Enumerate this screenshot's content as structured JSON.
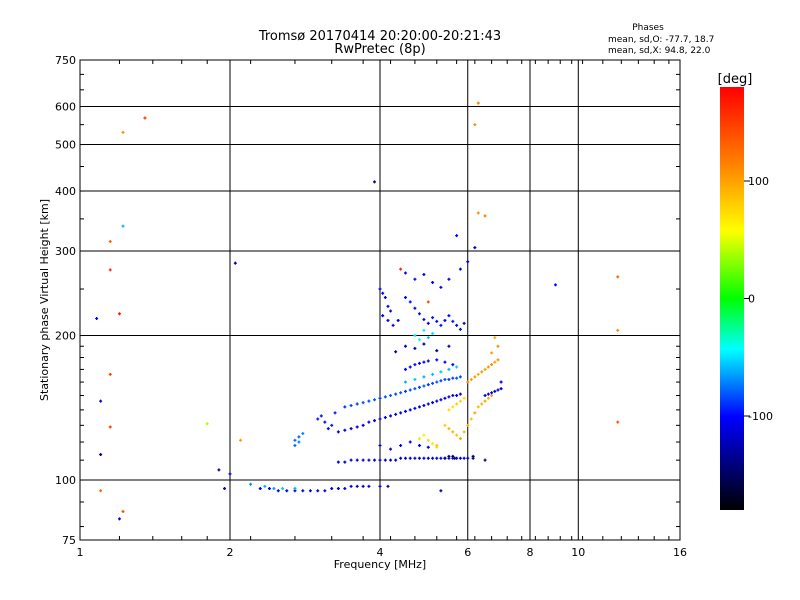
{
  "header": {
    "title_line1": "Tromsø 20170414 20:20:00-20:21:43",
    "title_line2": "RwPretec (8p)",
    "phases_label": "Phases",
    "phase_o": "mean, sd,O: -77.7, 18.7",
    "phase_x": "mean, sd,X:  94.8, 22.0"
  },
  "colorbar": {
    "label": "[deg]",
    "ticks": [
      "100",
      "0",
      "-100"
    ],
    "tick_values": [
      100,
      0,
      -100
    ],
    "range": [
      -180,
      180
    ],
    "colors": [
      "#ff0000",
      "#ff8000",
      "#ffff00",
      "#00ff00",
      "#00ffff",
      "#0000ff",
      "#000000"
    ]
  },
  "chart_data": {
    "type": "scatter",
    "title": "Tromsø 20170414 20:20:00-20:21:43",
    "subtitle": "RwPretec (8p)",
    "xlabel": "Frequency [MHz]",
    "ylabel": "Stationary phase Virtual Height [km]",
    "x_scale": "log",
    "y_scale": "log",
    "xlim": [
      1,
      16
    ],
    "ylim": [
      75,
      750
    ],
    "x_ticks": [
      1,
      2,
      4,
      6,
      8,
      10,
      16
    ],
    "x_tick_labels": [
      "1",
      "2",
      "4",
      "6",
      "8",
      "10",
      "16"
    ],
    "y_ticks": [
      75,
      100,
      200,
      300,
      400,
      500,
      600,
      750
    ],
    "y_tick_labels": [
      "75",
      "100",
      "200",
      "300",
      "400",
      "500",
      "600",
      "750"
    ],
    "grid": true,
    "color_by": "phase (deg)",
    "points": [
      [
        2.3,
        96,
        -110
      ],
      [
        2.4,
        96,
        -105
      ],
      [
        2.5,
        95,
        -115
      ],
      [
        2.6,
        95,
        -110
      ],
      [
        2.7,
        95,
        -112
      ],
      [
        2.8,
        95,
        -108
      ],
      [
        2.9,
        95,
        -115
      ],
      [
        3.0,
        95,
        -112
      ],
      [
        3.1,
        95,
        -110
      ],
      [
        3.2,
        96,
        -115
      ],
      [
        3.3,
        96,
        -112
      ],
      [
        3.4,
        96,
        -110
      ],
      [
        3.5,
        97,
        -115
      ],
      [
        3.6,
        97,
        -112
      ],
      [
        3.7,
        97,
        -118
      ],
      [
        3.8,
        97,
        -110
      ],
      [
        4.0,
        97,
        -115
      ],
      [
        4.15,
        97,
        -120
      ],
      [
        2.2,
        98,
        -70
      ],
      [
        2.35,
        97,
        -60
      ],
      [
        2.45,
        96,
        -65
      ],
      [
        2.55,
        96,
        -55
      ],
      [
        2.7,
        96,
        -60
      ],
      [
        3.3,
        109,
        -110
      ],
      [
        3.4,
        109,
        -115
      ],
      [
        3.5,
        110,
        -112
      ],
      [
        3.6,
        110,
        -118
      ],
      [
        3.7,
        110,
        -110
      ],
      [
        3.8,
        110,
        -115
      ],
      [
        3.9,
        110,
        -112
      ],
      [
        4.0,
        110,
        -120
      ],
      [
        4.1,
        110,
        -110
      ],
      [
        4.2,
        110,
        -115
      ],
      [
        4.3,
        110,
        -112
      ],
      [
        4.4,
        111,
        -115
      ],
      [
        4.5,
        111,
        -112
      ],
      [
        4.6,
        111,
        -118
      ],
      [
        4.7,
        111,
        -110
      ],
      [
        4.8,
        111,
        -115
      ],
      [
        4.9,
        111,
        -112
      ],
      [
        5.0,
        111,
        -120
      ],
      [
        5.1,
        111,
        -110
      ],
      [
        5.2,
        111,
        -115
      ],
      [
        5.3,
        111,
        -112
      ],
      [
        5.4,
        111,
        -115
      ],
      [
        5.5,
        111,
        -110
      ],
      [
        5.6,
        111,
        -118
      ],
      [
        5.7,
        111,
        -112
      ],
      [
        5.8,
        111,
        -115
      ],
      [
        5.9,
        111,
        -110
      ],
      [
        6.0,
        111,
        -120
      ],
      [
        5.4,
        111,
        -140
      ],
      [
        5.5,
        112,
        -135
      ],
      [
        5.65,
        111,
        -142
      ],
      [
        6.15,
        112,
        -138
      ],
      [
        6.5,
        110,
        -135
      ],
      [
        3.3,
        126,
        -110
      ],
      [
        3.4,
        127,
        -105
      ],
      [
        3.5,
        128,
        -112
      ],
      [
        3.6,
        129,
        -108
      ],
      [
        3.7,
        130,
        -110
      ],
      [
        3.8,
        132,
        -115
      ],
      [
        3.9,
        133,
        -108
      ],
      [
        4.0,
        134,
        -112
      ],
      [
        4.1,
        135,
        -110
      ],
      [
        4.2,
        136,
        -105
      ],
      [
        4.3,
        137,
        -112
      ],
      [
        4.4,
        138,
        -110
      ],
      [
        4.5,
        139,
        -108
      ],
      [
        4.6,
        140,
        -112
      ],
      [
        4.7,
        141,
        -110
      ],
      [
        4.8,
        142,
        -105
      ],
      [
        4.9,
        143,
        -112
      ],
      [
        5.0,
        144,
        -110
      ],
      [
        5.1,
        145,
        -108
      ],
      [
        5.2,
        146,
        -112
      ],
      [
        5.3,
        147,
        -110
      ],
      [
        5.4,
        148,
        -105
      ],
      [
        5.5,
        149,
        -112
      ],
      [
        5.6,
        150,
        -110
      ],
      [
        5.7,
        150,
        -108
      ],
      [
        5.8,
        151,
        -112
      ],
      [
        3.4,
        142,
        -90
      ],
      [
        3.5,
        143,
        -85
      ],
      [
        3.6,
        144,
        -88
      ],
      [
        3.7,
        145,
        -80
      ],
      [
        3.8,
        146,
        -86
      ],
      [
        3.9,
        147,
        -82
      ],
      [
        4.0,
        148,
        -88
      ],
      [
        4.1,
        149,
        -84
      ],
      [
        4.2,
        150,
        -80
      ],
      [
        4.3,
        151,
        -86
      ],
      [
        4.4,
        152,
        -82
      ],
      [
        4.5,
        153,
        -88
      ],
      [
        4.6,
        154,
        -84
      ],
      [
        4.7,
        155,
        -80
      ],
      [
        4.8,
        156,
        -86
      ],
      [
        4.9,
        157,
        -82
      ],
      [
        5.0,
        158,
        -88
      ],
      [
        5.1,
        159,
        -84
      ],
      [
        5.2,
        160,
        -80
      ],
      [
        5.3,
        161,
        -86
      ],
      [
        5.4,
        162,
        -82
      ],
      [
        5.5,
        162,
        -88
      ],
      [
        5.6,
        163,
        -84
      ],
      [
        5.7,
        163,
        -80
      ],
      [
        5.8,
        164,
        -86
      ],
      [
        2.7,
        121,
        -75
      ],
      [
        2.75,
        123,
        -80
      ],
      [
        2.8,
        125,
        -70
      ],
      [
        2.7,
        118,
        -78
      ],
      [
        2.75,
        120,
        -72
      ],
      [
        3.0,
        134,
        -95
      ],
      [
        3.1,
        132,
        -100
      ],
      [
        3.2,
        130,
        -92
      ],
      [
        3.15,
        128,
        -98
      ],
      [
        3.05,
        136,
        -94
      ],
      [
        3.25,
        138,
        -96
      ],
      [
        4.0,
        118,
        -110
      ],
      [
        4.2,
        116,
        -115
      ],
      [
        4.4,
        118,
        -105
      ],
      [
        4.6,
        120,
        -110
      ],
      [
        4.8,
        118,
        -112
      ],
      [
        5.0,
        117,
        -108
      ],
      [
        4.5,
        170,
        -100
      ],
      [
        4.6,
        172,
        -105
      ],
      [
        4.7,
        174,
        -98
      ],
      [
        4.8,
        175,
        -102
      ],
      [
        4.9,
        176,
        -100
      ],
      [
        5.0,
        177,
        -104
      ],
      [
        5.2,
        178,
        -98
      ],
      [
        5.4,
        176,
        -102
      ],
      [
        5.6,
        174,
        -100
      ],
      [
        4.5,
        160,
        -60
      ],
      [
        4.7,
        162,
        -55
      ],
      [
        4.9,
        164,
        -62
      ],
      [
        5.1,
        166,
        -58
      ],
      [
        5.3,
        168,
        -56
      ],
      [
        5.5,
        170,
        -60
      ],
      [
        5.7,
        172,
        -55
      ],
      [
        4.0,
        250,
        -110
      ],
      [
        4.05,
        245,
        -105
      ],
      [
        4.1,
        240,
        -112
      ],
      [
        4.15,
        230,
        -108
      ],
      [
        4.2,
        225,
        -110
      ],
      [
        4.05,
        220,
        -115
      ],
      [
        4.15,
        215,
        -112
      ],
      [
        4.25,
        210,
        -108
      ],
      [
        4.35,
        215,
        -110
      ],
      [
        4.5,
        240,
        -100
      ],
      [
        4.6,
        235,
        -95
      ],
      [
        4.7,
        228,
        -102
      ],
      [
        4.8,
        222,
        -98
      ],
      [
        4.9,
        216,
        -100
      ],
      [
        5.0,
        212,
        -105
      ],
      [
        5.1,
        218,
        -95
      ],
      [
        5.2,
        214,
        -100
      ],
      [
        5.3,
        210,
        -98
      ],
      [
        5.4,
        215,
        -102
      ],
      [
        5.5,
        220,
        -100
      ],
      [
        5.6,
        214,
        -96
      ],
      [
        5.7,
        210,
        -100
      ],
      [
        5.8,
        206,
        -98
      ],
      [
        5.9,
        212,
        -102
      ],
      [
        4.5,
        270,
        -105
      ],
      [
        4.7,
        262,
        -100
      ],
      [
        4.9,
        268,
        -110
      ],
      [
        5.1,
        258,
        -100
      ],
      [
        5.3,
        252,
        -105
      ],
      [
        5.5,
        262,
        -110
      ],
      [
        4.3,
        185,
        -120
      ],
      [
        4.5,
        190,
        -130
      ],
      [
        4.7,
        188,
        -125
      ],
      [
        4.9,
        192,
        -135
      ],
      [
        5.2,
        186,
        -128
      ],
      [
        5.5,
        190,
        -130
      ],
      [
        4.7,
        200,
        -50
      ],
      [
        4.8,
        196,
        -40
      ],
      [
        4.9,
        205,
        -45
      ],
      [
        5.0,
        198,
        -55
      ],
      [
        5.1,
        202,
        -48
      ],
      [
        5.4,
        130,
        80
      ],
      [
        5.5,
        128,
        90
      ],
      [
        5.6,
        126,
        95
      ],
      [
        5.7,
        124,
        85
      ],
      [
        5.8,
        122,
        100
      ],
      [
        5.9,
        126,
        90
      ],
      [
        6.0,
        130,
        95
      ],
      [
        6.1,
        134,
        85
      ],
      [
        6.2,
        138,
        100
      ],
      [
        6.3,
        142,
        90
      ],
      [
        6.4,
        144,
        95
      ],
      [
        6.5,
        146,
        100
      ],
      [
        6.6,
        148,
        92
      ],
      [
        6.7,
        150,
        98
      ],
      [
        6.0,
        160,
        110
      ],
      [
        6.1,
        162,
        100
      ],
      [
        6.2,
        164,
        105
      ],
      [
        6.3,
        166,
        95
      ],
      [
        6.4,
        168,
        108
      ],
      [
        6.5,
        170,
        100
      ],
      [
        6.6,
        172,
        104
      ],
      [
        6.7,
        174,
        110
      ],
      [
        6.8,
        176,
        100
      ],
      [
        6.9,
        178,
        105
      ],
      [
        5.5,
        140,
        75
      ],
      [
        5.6,
        142,
        70
      ],
      [
        5.7,
        144,
        80
      ],
      [
        5.8,
        146,
        78
      ],
      [
        5.9,
        148,
        72
      ],
      [
        6.5,
        150,
        -110
      ],
      [
        6.6,
        151,
        -115
      ],
      [
        6.7,
        152,
        -112
      ],
      [
        6.8,
        153,
        -118
      ],
      [
        6.9,
        154,
        -110
      ],
      [
        7.0,
        155,
        -115
      ],
      [
        4.8,
        122,
        70
      ],
      [
        4.9,
        124,
        65
      ],
      [
        5.0,
        121,
        75
      ],
      [
        5.1,
        119,
        68
      ],
      [
        5.2,
        117,
        72
      ],
      [
        5.6,
        112,
        -160
      ],
      [
        6.15,
        111,
        -150
      ],
      [
        5.2,
        118,
        85
      ],
      [
        1.2,
        83,
        -115
      ],
      [
        1.1,
        95,
        130
      ],
      [
        1.22,
        86,
        140
      ],
      [
        1.1,
        113,
        -130
      ],
      [
        1.1,
        146,
        -115
      ],
      [
        1.15,
        129,
        150
      ],
      [
        1.15,
        166,
        150
      ],
      [
        1.08,
        217,
        -105
      ],
      [
        1.15,
        274,
        160
      ],
      [
        1.2,
        222,
        170
      ],
      [
        1.15,
        314,
        130
      ],
      [
        1.22,
        338,
        -60
      ],
      [
        1.22,
        530,
        110
      ],
      [
        1.35,
        568,
        150
      ],
      [
        1.8,
        131,
        40
      ],
      [
        2.05,
        283,
        -130
      ],
      [
        2.1,
        121,
        100
      ],
      [
        1.95,
        96,
        -100
      ],
      [
        1.9,
        105,
        -140
      ],
      [
        2.0,
        103,
        -110
      ],
      [
        3.9,
        418,
        -140
      ],
      [
        5.7,
        323,
        -100
      ],
      [
        6.2,
        305,
        -120
      ],
      [
        6.3,
        360,
        110
      ],
      [
        6.5,
        355,
        115
      ],
      [
        6.2,
        550,
        110
      ],
      [
        6.3,
        610,
        115
      ],
      [
        9.0,
        255,
        -100
      ],
      [
        12.0,
        265,
        130
      ],
      [
        12.0,
        205,
        110
      ],
      [
        12.0,
        132,
        140
      ],
      [
        5.8,
        275,
        -110
      ],
      [
        6.0,
        285,
        -100
      ],
      [
        4.4,
        275,
        160
      ],
      [
        5.0,
        235,
        140
      ],
      [
        5.3,
        95,
        -120
      ],
      [
        6.9,
        190,
        110
      ],
      [
        6.8,
        198,
        95
      ],
      [
        6.7,
        184,
        100
      ],
      [
        7.0,
        160,
        -110
      ]
    ]
  }
}
